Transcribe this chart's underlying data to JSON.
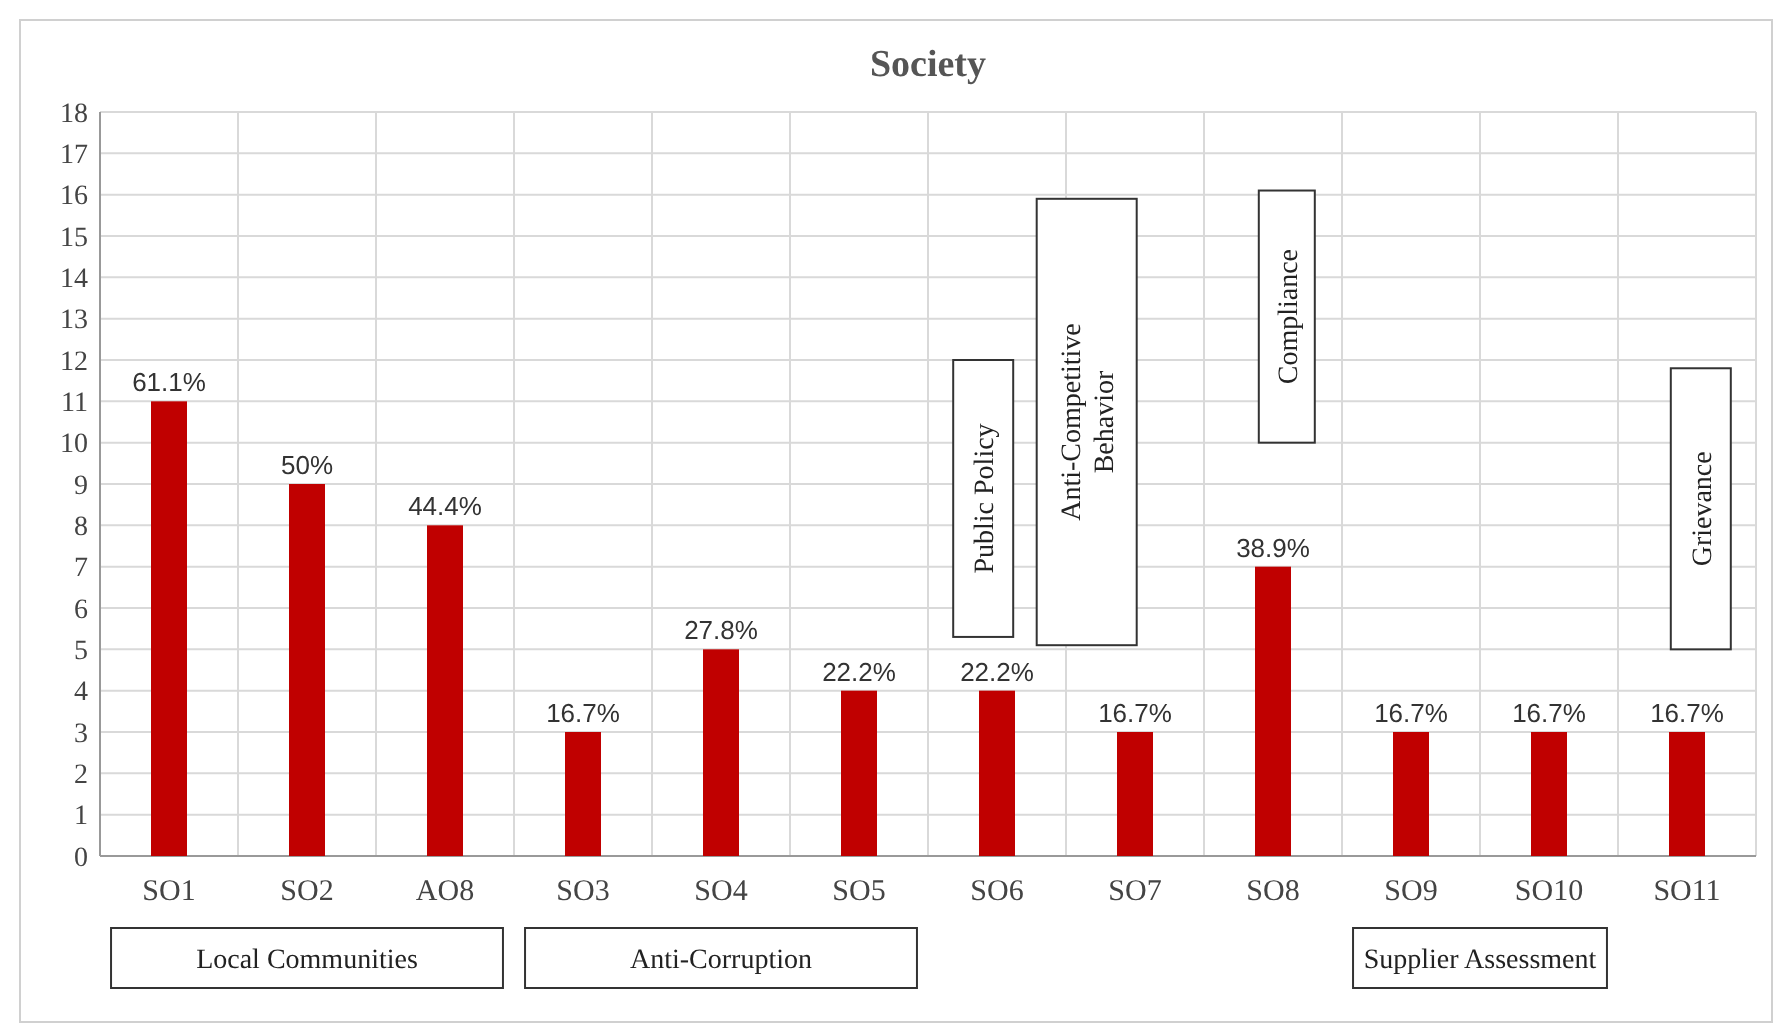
{
  "chart_data": {
    "type": "bar",
    "title": "Society",
    "categories": [
      "SO1",
      "SO2",
      "AO8",
      "SO3",
      "SO4",
      "SO5",
      "SO6",
      "SO7",
      "SO8",
      "SO9",
      "SO10",
      "SO11"
    ],
    "values": [
      11,
      9,
      8,
      3,
      5,
      4,
      4,
      3,
      7,
      3,
      3,
      3
    ],
    "color": "#c00000",
    "ylim": [
      0,
      18
    ],
    "yticks": [
      0,
      1,
      2,
      3,
      4,
      5,
      6,
      7,
      8,
      9,
      10,
      11,
      12,
      13,
      14,
      15,
      16,
      17,
      18
    ],
    "grid": true,
    "annotations": [
      "Local Communities",
      "Anti-Corruption",
      "Public Policy",
      "Anti-Competitive Behavior",
      "Compliance",
      "Supplier Assessment",
      "Grievance",
      {
        "text": "61.1%",
        "x": "SO1",
        "y": 11
      },
      {
        "text": "50%",
        "x": "SO2",
        "y": 9
      },
      {
        "text": "44.4%",
        "x": "AO8",
        "y": 8
      },
      {
        "text": "16.7%",
        "x": "SO3",
        "y": 3
      },
      {
        "text": "27.8%",
        "x": "SO4",
        "y": 5
      },
      {
        "text": "22.2%",
        "x": "SO5",
        "y": 4
      },
      {
        "text": "22.2%",
        "x": "SO6",
        "y": 4
      },
      {
        "text": "16.7%",
        "x": "SO7",
        "y": 3
      },
      {
        "text": "38.9%",
        "x": "SO8",
        "y": 7
      },
      {
        "text": "16.7%",
        "x": "SO9",
        "y": 3
      },
      {
        "text": "16.7%",
        "x": "SO10",
        "y": 3
      },
      {
        "text": "16.7%",
        "x": "SO11",
        "y": 3
      }
    ]
  }
}
